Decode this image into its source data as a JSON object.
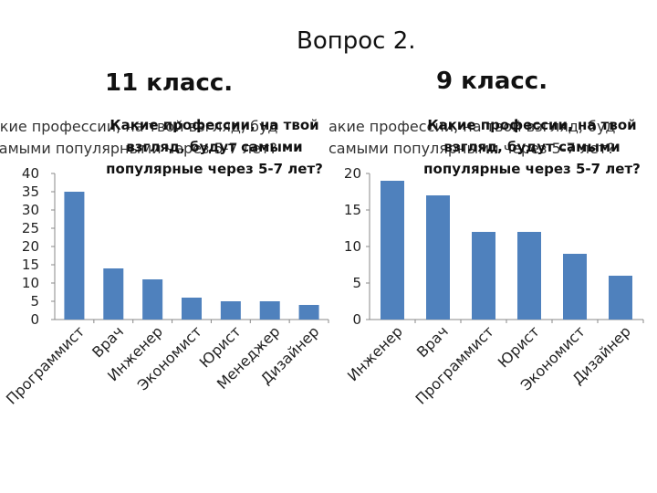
{
  "page": {
    "title": "Вопрос 2.",
    "grade_11_heading": "11 класс.",
    "grade_9_heading": "9 класс."
  },
  "colors": {
    "bar": "#4f81bd",
    "axis": "#888888"
  },
  "chart_data": [
    {
      "type": "bar",
      "title": "Какие профессии, на твой взгляд, будут самыми популярные через 5-7 лет?",
      "title_lines": [
        "Какие профессии, на твой",
        "взгляд, будут самыми",
        "популярные через 5-7 лет?"
      ],
      "question_bg_lines": [
        "акие профессии, на твой взгляд, буд",
        "самыми популярными через 5-7 лет?"
      ],
      "categories": [
        "Программист",
        "Врач",
        "Инженер",
        "Экономист",
        "Юрист",
        "Менеджер",
        "Дизайнер"
      ],
      "values": [
        35,
        14,
        11,
        6,
        5,
        5,
        4
      ],
      "ylim": [
        0,
        40
      ],
      "yticks": [
        0,
        5,
        10,
        15,
        20,
        25,
        30,
        35,
        40
      ],
      "grid": false,
      "legend": "none"
    },
    {
      "type": "bar",
      "title": "Какие профессии, на твой взгляд, будут самыми популярные через 5-7 лет?",
      "title_lines": [
        "Какие профессии, на твой",
        "взгляд, будут самыми",
        "популярные через 5-7 лет?"
      ],
      "question_bg_lines": [
        "акие профессии, на твой взгляд, буд",
        "самыми популярными через 5-7 лет?"
      ],
      "categories": [
        "Инженер",
        "Врач",
        "Программист",
        "Юрист",
        "Экономист",
        "Дизайнер"
      ],
      "values": [
        19,
        17,
        12,
        12,
        9,
        6
      ],
      "ylim": [
        0,
        20
      ],
      "yticks": [
        0,
        5,
        10,
        15,
        20
      ],
      "grid": false,
      "legend": "none"
    }
  ]
}
